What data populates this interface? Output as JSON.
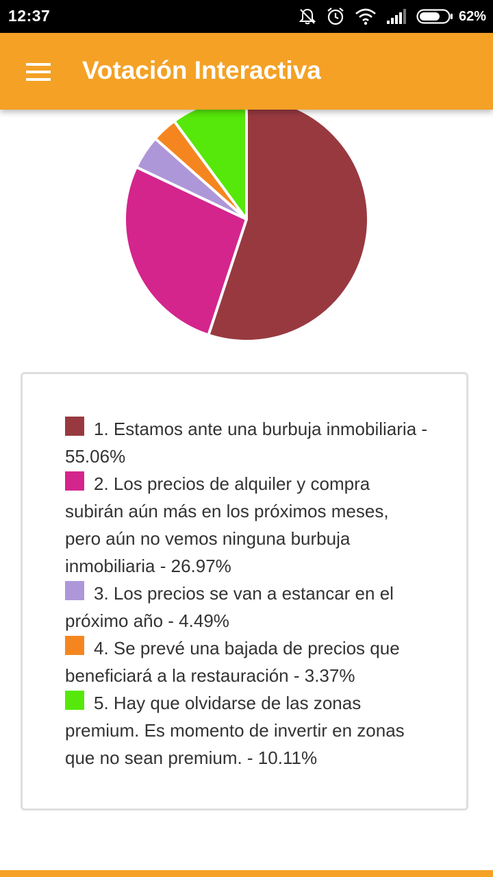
{
  "status_bar": {
    "time": "12:37",
    "battery": "62%",
    "icons": [
      "bell-off-icon",
      "alarm-icon",
      "wifi-icon",
      "signal-icon",
      "battery-icon"
    ]
  },
  "app_bar": {
    "title": "Votación Interactiva",
    "menu_icon": "hamburger-menu-icon",
    "color": "#f4a126"
  },
  "chart_data": {
    "type": "pie",
    "categories": [
      "1. Estamos ante una burbuja inmobiliaria",
      "2. Los precios de alquiler y compra subirán aún más en los próximos meses, pero aún no vemos ninguna burbuja inmobiliaria",
      "3. Los precios se van a estancar en el próximo año",
      "4. Se prevé una bajada de precios que beneficiará a la restauración",
      "5. Hay que olvidarse de las zonas premium. Es momento de invertir en zonas que no sean premium."
    ],
    "values": [
      55.06,
      26.97,
      4.49,
      3.37,
      10.11
    ],
    "colors": [
      "#983940",
      "#d4258d",
      "#ae97d8",
      "#f5861f",
      "#56e80a"
    ],
    "direction": "clockwise-from-top",
    "legend": "below"
  },
  "legend": {
    "items": [
      {
        "label": "1. Estamos ante una burbuja inmobiliaria - 55.06%",
        "color": "#983940"
      },
      {
        "label": "2. Los precios de alquiler y compra subirán aún más en los próximos meses, pero aún no vemos ninguna burbuja inmobiliaria - 26.97%",
        "color": "#d4258d"
      },
      {
        "label": "3. Los precios se van a estancar en el próximo año - 4.49%",
        "color": "#ae97d8"
      },
      {
        "label": "4. Se prevé una bajada de precios que beneficiará a la restauración - 3.37%",
        "color": "#f5861f"
      },
      {
        "label": "5. Hay que olvidarse de las zonas premium. Es momento de invertir en zonas que no sean premium. - 10.11%",
        "color": "#56e80a"
      }
    ]
  }
}
